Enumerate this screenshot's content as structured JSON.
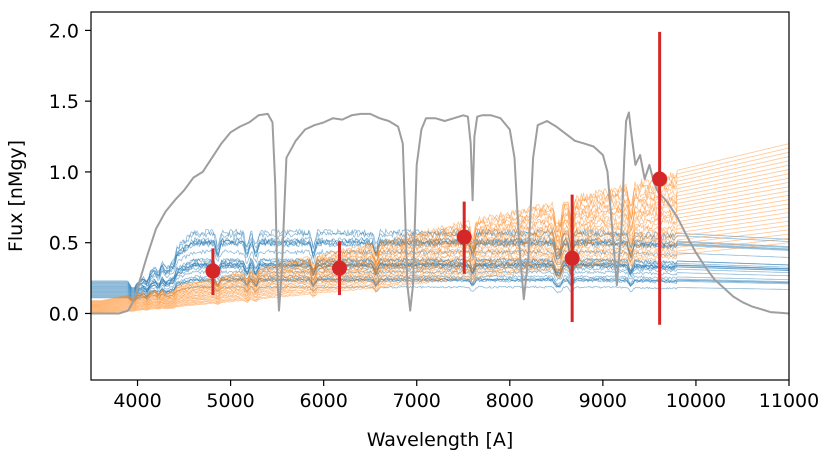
{
  "chart_data": {
    "type": "line",
    "title": "",
    "xlabel": "Wavelength [A]",
    "ylabel": "Flux [nMgy]",
    "xlim": [
      3500,
      11000
    ],
    "ylim": [
      -0.47,
      2.13
    ],
    "xticks": [
      4000,
      5000,
      6000,
      7000,
      8000,
      9000,
      10000,
      11000
    ],
    "xtick_labels": [
      "4000",
      "5000",
      "6000",
      "7000",
      "8000",
      "9000",
      "10000",
      "11000"
    ],
    "yticks": [
      0.0,
      0.5,
      1.0,
      1.5,
      2.0
    ],
    "ytick_labels": [
      "0.0",
      "0.5",
      "1.0",
      "1.5",
      "2.0"
    ],
    "grid": false,
    "colors": {
      "blue": "#1f77b4",
      "orange": "#ff7f0e",
      "filter": "#9e9e9e",
      "points": "#d62728",
      "axes": "#000000"
    },
    "photometry": [
      {
        "x": 4810,
        "y": 0.3,
        "err_low": 0.13,
        "err_high": 0.46
      },
      {
        "x": 6170,
        "y": 0.32,
        "err_low": 0.13,
        "err_high": 0.51
      },
      {
        "x": 7510,
        "y": 0.54,
        "err_low": 0.28,
        "err_high": 0.79
      },
      {
        "x": 8670,
        "y": 0.39,
        "err_low": -0.06,
        "err_high": 0.84
      },
      {
        "x": 9610,
        "y": 0.95,
        "err_low": -0.08,
        "err_high": 1.99
      }
    ],
    "filter_curve": {
      "x": [
        3500,
        3800,
        3900,
        3950,
        4000,
        4100,
        4200,
        4300,
        4400,
        4500,
        4600,
        4700,
        4800,
        4900,
        5000,
        5100,
        5200,
        5300,
        5400,
        5450,
        5480,
        5500,
        5520,
        5550,
        5600,
        5700,
        5800,
        5900,
        6000,
        6100,
        6200,
        6300,
        6400,
        6500,
        6600,
        6700,
        6800,
        6850,
        6880,
        6900,
        6930,
        6960,
        7000,
        7050,
        7100,
        7200,
        7300,
        7400,
        7500,
        7550,
        7580,
        7600,
        7620,
        7650,
        7700,
        7800,
        7900,
        8000,
        8050,
        8100,
        8150,
        8200,
        8250,
        8300,
        8400,
        8500,
        8600,
        8700,
        8800,
        8900,
        9000,
        9050,
        9100,
        9150,
        9200,
        9230,
        9250,
        9280,
        9300,
        9350,
        9400,
        9450,
        9500,
        9550,
        9600,
        9650,
        9700,
        9800,
        9900,
        10000,
        10100,
        10200,
        10300,
        10400,
        10500,
        10600,
        10700,
        10800,
        10900,
        11000
      ],
      "y": [
        0,
        0,
        0.02,
        0.08,
        0.18,
        0.4,
        0.6,
        0.72,
        0.8,
        0.87,
        0.96,
        1.0,
        1.1,
        1.2,
        1.28,
        1.32,
        1.35,
        1.4,
        1.41,
        1.35,
        0.9,
        0.3,
        0.02,
        0.3,
        1.1,
        1.22,
        1.3,
        1.33,
        1.35,
        1.38,
        1.37,
        1.4,
        1.41,
        1.41,
        1.38,
        1.36,
        1.32,
        1.2,
        0.6,
        0.2,
        0.02,
        0.2,
        1.05,
        1.3,
        1.38,
        1.38,
        1.36,
        1.38,
        1.4,
        1.39,
        1.2,
        0.8,
        1.25,
        1.39,
        1.4,
        1.4,
        1.38,
        1.3,
        1.1,
        0.5,
        0.1,
        0.4,
        1.1,
        1.33,
        1.36,
        1.32,
        1.27,
        1.22,
        1.2,
        1.18,
        1.12,
        1.0,
        0.6,
        0.2,
        0.6,
        1.1,
        1.36,
        1.42,
        1.3,
        1.05,
        1.12,
        0.95,
        1.05,
        0.92,
        0.85,
        0.82,
        0.78,
        0.68,
        0.55,
        0.43,
        0.33,
        0.24,
        0.18,
        0.12,
        0.08,
        0.05,
        0.03,
        0.01,
        0.005,
        0
      ]
    },
    "model_spectra": [
      {
        "name": "blue",
        "n_lines": 24,
        "low_range": [
          0.11,
          0.23
        ],
        "continuum_ratio": [
          0.95,
          1.3
        ]
      },
      {
        "name": "orange",
        "n_lines": 24,
        "low_range": [
          0.0,
          0.09
        ],
        "high_range": [
          0.5,
          1.2
        ]
      }
    ]
  }
}
